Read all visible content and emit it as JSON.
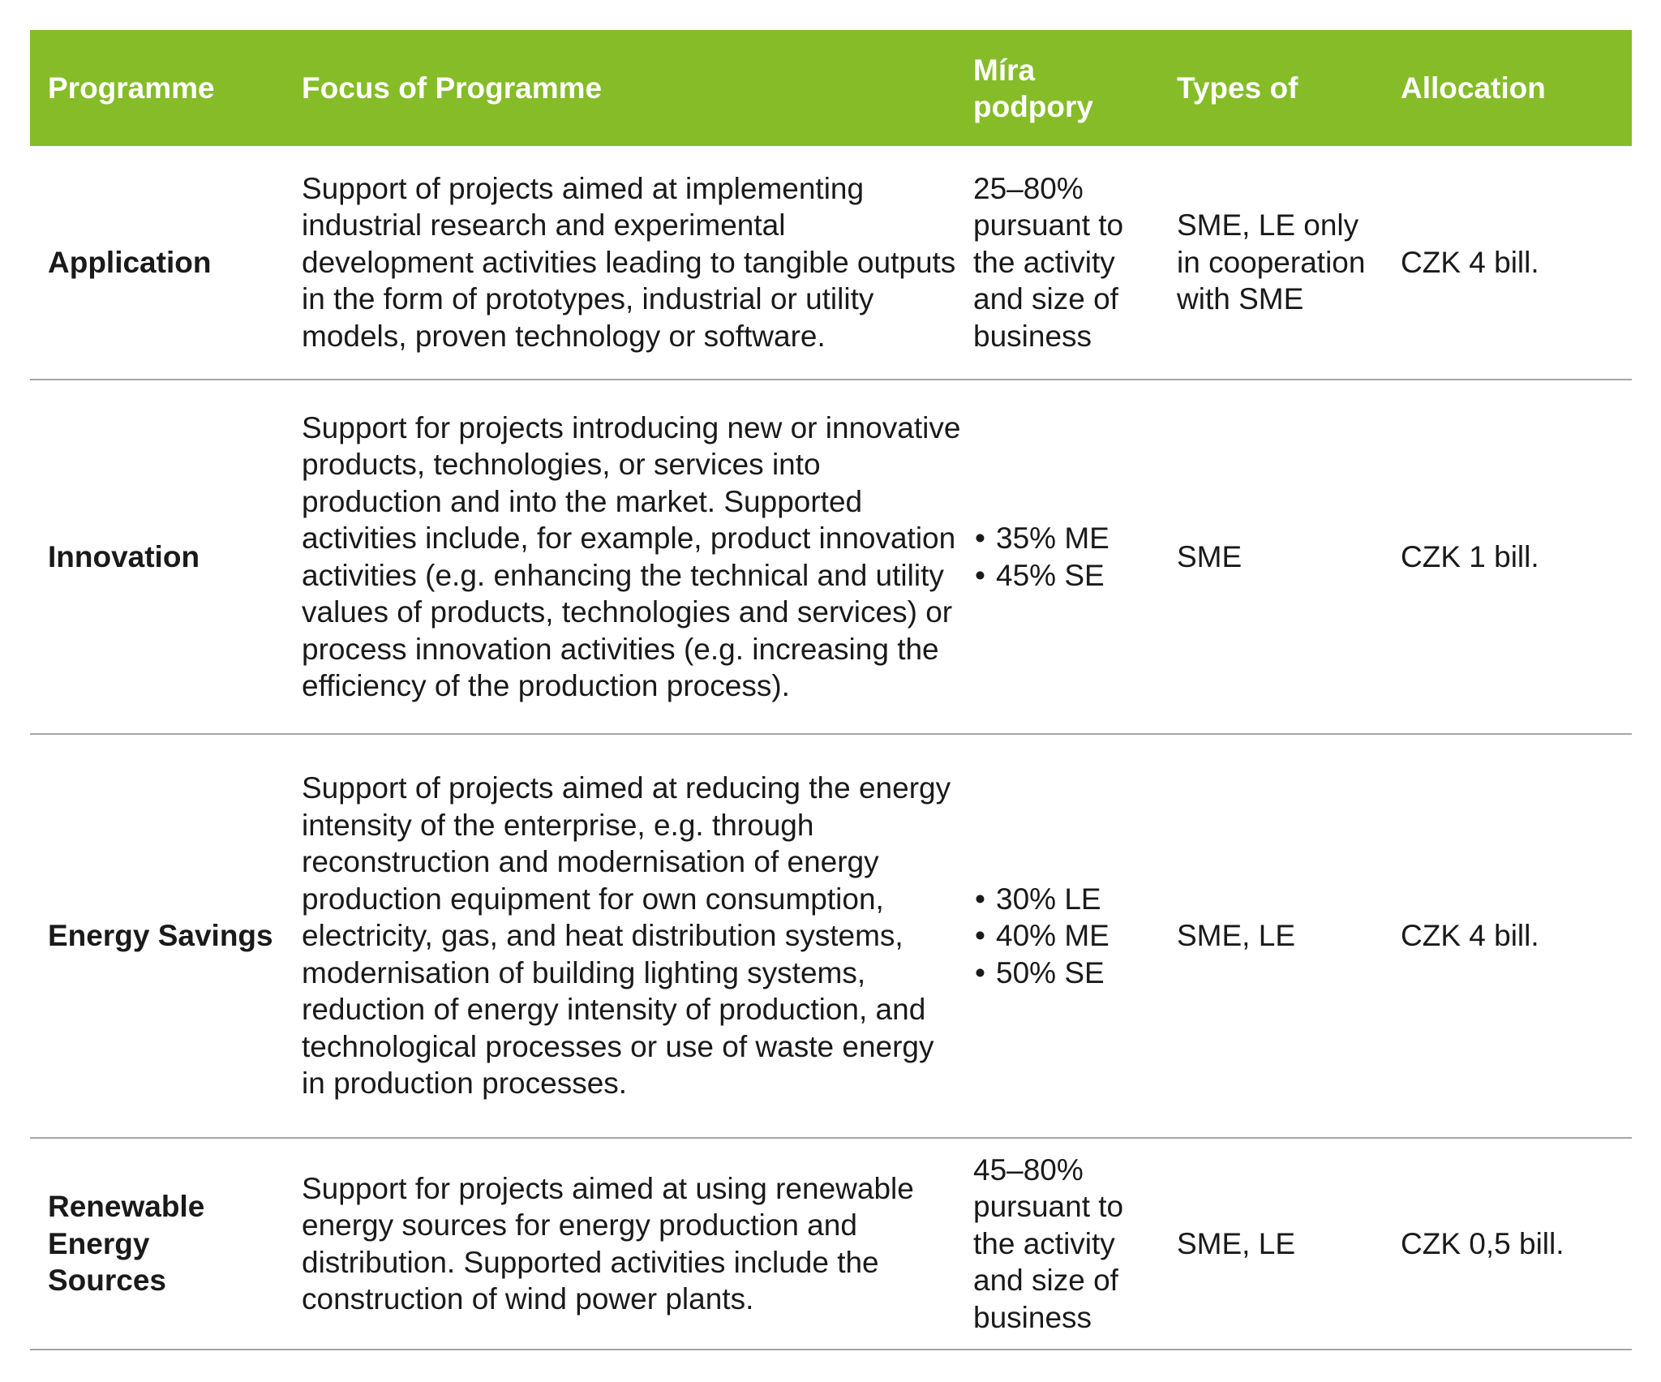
{
  "header": {
    "programme": "Programme",
    "focus": "Focus of Programme",
    "support_rate": "Míra podpory",
    "types": "Types of",
    "allocation": "Allocation"
  },
  "rows": [
    {
      "programme": "Application",
      "focus": "Support of projects aimed at implementing industrial research and experimental development activities leading to tangible outputs in the form of prototypes, industrial or utility models, proven technology or software.",
      "support_rate": "25–80% pursuant to the activity and size of business",
      "support_rate_bullets": [],
      "types": "SME, LE only in cooperation with SME",
      "allocation": "CZK 4 bill."
    },
    {
      "programme": "Innovation",
      "focus": "Support for projects introducing new or innovative products, technologies, or services into production and into the market. Supported activities include, for example, product innovation activities (e.g. enhancing the technical and utility values of products, technologies and services) or process innovation activities (e.g. increasing the efficiency of the production process).",
      "support_rate": "",
      "support_rate_bullets": [
        "35% ME",
        "45% SE"
      ],
      "types": "SME",
      "allocation": "CZK 1 bill."
    },
    {
      "programme": "Energy Savings",
      "focus": "Support of projects aimed at reducing the energy intensity of the enterprise, e.g. through reconstruction and modernisation of energy production equipment for own consumption, electricity, gas, and heat distribution systems, modernisation of building lighting systems, reduction of energy intensity of production, and technological processes or use of waste energy in production processes.",
      "support_rate": "",
      "support_rate_bullets": [
        "30% LE",
        "40% ME",
        "50% SE"
      ],
      "types": "SME, LE",
      "allocation": "CZK 4 bill."
    },
    {
      "programme": "Renewable Energy Sources",
      "focus": "Support for projects aimed at using renewable energy sources for energy production and distribution. Supported activities include the construction of wind power plants.",
      "support_rate": "45–80% pursuant to the activity and size of business",
      "support_rate_bullets": [],
      "types": "SME, LE",
      "allocation": "CZK 0,5 bill."
    }
  ],
  "colors": {
    "header_bg": "#85bc28",
    "header_text": "#ffffff",
    "divider": "#a6a6a6"
  }
}
